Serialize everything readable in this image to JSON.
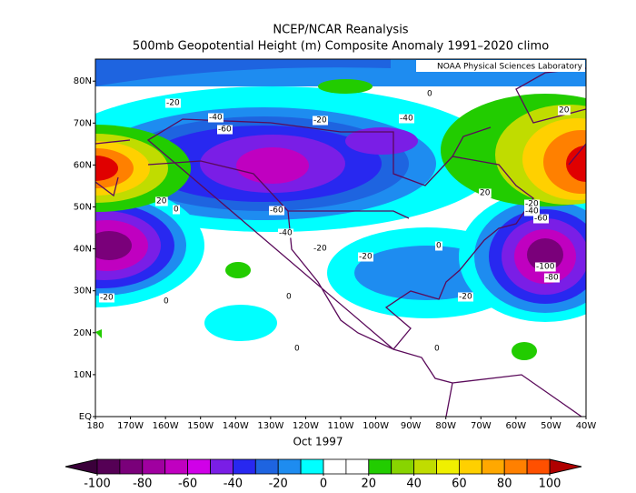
{
  "header": {
    "title": "NCEP/NCAR Reanalysis",
    "subtitle": "500mb Geopotential Height (m) Composite Anomaly 1991–2020 climo"
  },
  "map": {
    "attribution": "NOAA Physical Sciences Laboratory",
    "lat_labels": [
      "EQ",
      "10N",
      "20N",
      "30N",
      "40N",
      "50N",
      "60N",
      "70N",
      "80N"
    ],
    "lon_labels": [
      "180",
      "170W",
      "160W",
      "150W",
      "140W",
      "130W",
      "120W",
      "110W",
      "100W",
      "90W",
      "80W",
      "70W",
      "60W",
      "50W",
      "40W"
    ],
    "contour_labels": [
      "-20",
      "-40",
      "-60",
      "-20",
      "-40",
      "0",
      "20",
      "20",
      "-20",
      "-40",
      "-60",
      "20",
      "0",
      "-60",
      "-40",
      "-20",
      "-20",
      "0",
      "-100",
      "-80",
      "-20",
      "-20",
      "0",
      "0",
      "0",
      "0"
    ]
  },
  "footer": {
    "period": "Oct 1997"
  },
  "colorbar": {
    "under_color": "#3a003a",
    "over_color": "#b00000",
    "colors": [
      "#550055",
      "#7a007a",
      "#a000a0",
      "#c000c0",
      "#d000e8",
      "#7a1ee6",
      "#2828f0",
      "#1e64e0",
      "#1e8cf0",
      "#00ffff",
      "#ffffff",
      "#ffffff",
      "#22cc00",
      "#88d400",
      "#c0dc00",
      "#f0f000",
      "#ffd000",
      "#ffa800",
      "#ff8000",
      "#ff5000"
    ],
    "ticks": [
      -100,
      -80,
      -60,
      -40,
      -20,
      0,
      20,
      40,
      60,
      80,
      100
    ]
  }
}
